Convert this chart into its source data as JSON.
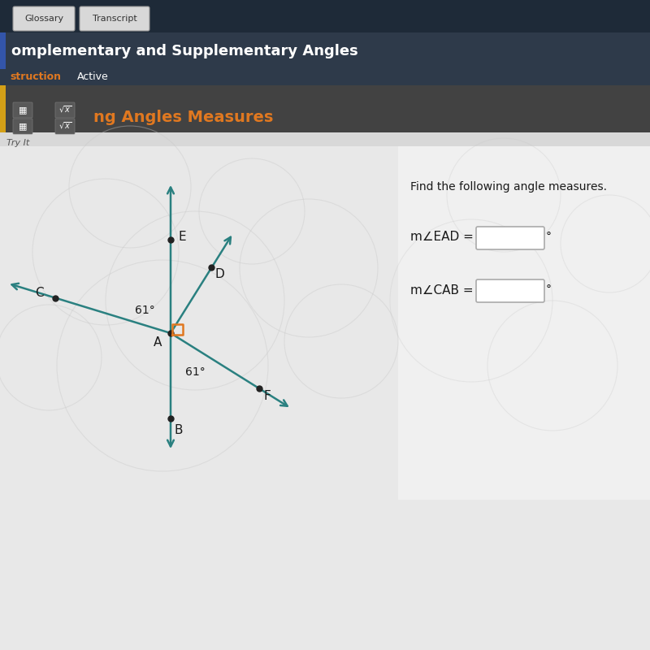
{
  "title_text": "omplementary and Supplementary Angles",
  "subtitle_orange": "ng Angles Measures",
  "tab1": "Glossary",
  "tab2": "Transcript",
  "instruction_label": "struction",
  "active_label": "Active",
  "try_it_label": "Try It",
  "find_text": "Find the following angle measures.",
  "label_EAD": "m∠EAD =",
  "label_CAB": "m∠CAB =",
  "degree_symbol": "°",
  "angle_61_1": "61°",
  "angle_61_2": "61°",
  "bg_color": "#d8d8d8",
  "header_bg": "#2e3a4a",
  "tab_bar_bg": "#1e2a38",
  "toolbar_bg": "#424242",
  "diagram_bg": "#e8e8e8",
  "right_panel_bg": "#f0f0f0",
  "orange_color": "#e07820",
  "teal_color": "#2a8080",
  "input_box_color": "#ffffff",
  "input_border_color": "#aaaaaa",
  "dot_color": "#222222",
  "text_color": "#1a1a1a",
  "white": "#ffffff",
  "gray_light": "#cccccc",
  "blue_tab": "#3355aa"
}
